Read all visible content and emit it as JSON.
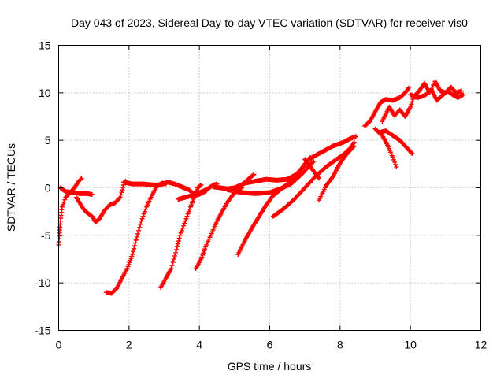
{
  "chart_data": {
    "type": "scatter",
    "title": "Day 043 of 2023, Sidereal Day-to-day VTEC variation (SDTVAR) for receiver vis0",
    "xlabel": "GPS time / hours",
    "ylabel": "SDTVAR / TECUs",
    "xlim": [
      0,
      12
    ],
    "ylim": [
      -15,
      15
    ],
    "xticks": [
      0,
      2,
      4,
      6,
      8,
      10,
      12
    ],
    "yticks": [
      -15,
      -10,
      -5,
      0,
      5,
      10,
      15
    ],
    "grid": true,
    "marker": "+",
    "color": "#ff0000",
    "series": [
      {
        "name": "track-1",
        "points": [
          [
            0.0,
            -6.0
          ],
          [
            0.05,
            -3.5
          ],
          [
            0.1,
            -2.0
          ],
          [
            0.2,
            -1.0
          ],
          [
            0.3,
            -0.6
          ],
          [
            0.45,
            0.0
          ],
          [
            0.55,
            0.6
          ],
          [
            0.65,
            1.0
          ]
        ]
      },
      {
        "name": "track-2",
        "points": [
          [
            0.05,
            0.0
          ],
          [
            0.2,
            -0.4
          ],
          [
            0.4,
            -0.5
          ],
          [
            0.6,
            -0.6
          ],
          [
            0.8,
            -0.6
          ],
          [
            0.95,
            -0.7
          ]
        ]
      },
      {
        "name": "track-3",
        "points": [
          [
            0.5,
            -1.0
          ],
          [
            0.7,
            -2.2
          ],
          [
            0.8,
            -2.6
          ],
          [
            0.95,
            -3.0
          ],
          [
            1.05,
            -3.6
          ],
          [
            1.15,
            -3.3
          ],
          [
            1.3,
            -2.4
          ],
          [
            1.45,
            -1.8
          ],
          [
            1.6,
            -1.6
          ],
          [
            1.75,
            -1.0
          ],
          [
            1.85,
            0.3
          ],
          [
            1.9,
            0.7
          ]
        ]
      },
      {
        "name": "track-4",
        "points": [
          [
            1.85,
            0.6
          ],
          [
            2.1,
            0.4
          ],
          [
            2.4,
            0.4
          ],
          [
            2.7,
            0.3
          ],
          [
            2.85,
            0.3
          ]
        ]
      },
      {
        "name": "track-5",
        "points": [
          [
            1.35,
            -11.0
          ],
          [
            1.5,
            -11.1
          ],
          [
            1.65,
            -10.6
          ],
          [
            1.8,
            -9.5
          ],
          [
            1.95,
            -8.5
          ],
          [
            2.1,
            -7.0
          ],
          [
            2.2,
            -5.5
          ],
          [
            2.35,
            -3.5
          ],
          [
            2.5,
            -2.0
          ],
          [
            2.65,
            -0.8
          ],
          [
            2.8,
            0.2
          ],
          [
            2.95,
            0.5
          ],
          [
            3.05,
            0.4
          ]
        ]
      },
      {
        "name": "track-6",
        "points": [
          [
            2.9,
            0.3
          ],
          [
            3.1,
            0.6
          ],
          [
            3.3,
            0.4
          ],
          [
            3.5,
            0.1
          ],
          [
            3.7,
            -0.2
          ],
          [
            3.9,
            -0.8
          ],
          [
            4.05,
            -0.6
          ],
          [
            4.2,
            -0.3
          ]
        ]
      },
      {
        "name": "track-7",
        "points": [
          [
            2.9,
            -10.5
          ],
          [
            3.05,
            -9.5
          ],
          [
            3.2,
            -8.5
          ],
          [
            3.35,
            -6.5
          ],
          [
            3.45,
            -5.0
          ],
          [
            3.6,
            -3.5
          ],
          [
            3.75,
            -2.0
          ],
          [
            3.85,
            -1.0
          ],
          [
            3.95,
            0.0
          ],
          [
            4.05,
            0.3
          ]
        ]
      },
      {
        "name": "track-8",
        "points": [
          [
            3.4,
            -1.2
          ],
          [
            3.6,
            -1.0
          ],
          [
            3.8,
            -0.8
          ],
          [
            4.0,
            -0.5
          ],
          [
            4.2,
            -0.2
          ],
          [
            4.4,
            0.3
          ],
          [
            4.5,
            0.4
          ]
        ]
      },
      {
        "name": "track-9",
        "points": [
          [
            3.9,
            -8.5
          ],
          [
            4.05,
            -7.5
          ],
          [
            4.2,
            -6.0
          ],
          [
            4.35,
            -4.8
          ],
          [
            4.5,
            -3.5
          ],
          [
            4.65,
            -2.5
          ],
          [
            4.8,
            -1.5
          ],
          [
            5.0,
            -0.5
          ],
          [
            5.2,
            0.0
          ]
        ]
      },
      {
        "name": "track-10",
        "points": [
          [
            4.4,
            0.1
          ],
          [
            4.6,
            0.0
          ],
          [
            4.8,
            -0.1
          ],
          [
            5.0,
            0.0
          ],
          [
            5.15,
            0.1
          ],
          [
            5.3,
            0.6
          ],
          [
            5.45,
            1.1
          ],
          [
            5.55,
            1.4
          ]
        ]
      },
      {
        "name": "track-11",
        "points": [
          [
            4.8,
            -0.2
          ],
          [
            5.2,
            -0.5
          ],
          [
            5.6,
            -0.6
          ],
          [
            6.0,
            -0.5
          ],
          [
            6.3,
            -0.1
          ],
          [
            6.6,
            0.4
          ],
          [
            6.9,
            1.4
          ],
          [
            7.1,
            2.2
          ],
          [
            7.25,
            2.8
          ]
        ]
      },
      {
        "name": "track-12",
        "points": [
          [
            5.1,
            -7.0
          ],
          [
            5.3,
            -5.5
          ],
          [
            5.5,
            -4.2
          ],
          [
            5.7,
            -3.0
          ],
          [
            5.9,
            -1.8
          ],
          [
            6.1,
            -0.8
          ],
          [
            6.3,
            -0.2
          ],
          [
            6.5,
            0.4
          ],
          [
            6.7,
            0.8
          ]
        ]
      },
      {
        "name": "track-13",
        "points": [
          [
            5.0,
            0.0
          ],
          [
            5.3,
            0.5
          ],
          [
            5.6,
            0.7
          ],
          [
            5.9,
            0.9
          ],
          [
            6.2,
            0.8
          ],
          [
            6.5,
            0.9
          ],
          [
            6.8,
            1.5
          ],
          [
            7.0,
            2.5
          ],
          [
            7.15,
            3.2
          ]
        ]
      },
      {
        "name": "track-14",
        "points": [
          [
            6.1,
            -3.0
          ],
          [
            6.4,
            -2.2
          ],
          [
            6.7,
            -1.2
          ],
          [
            7.0,
            0.0
          ],
          [
            7.3,
            1.2
          ],
          [
            7.6,
            2.2
          ],
          [
            7.9,
            3.0
          ],
          [
            8.1,
            3.5
          ],
          [
            8.3,
            4.2
          ],
          [
            8.4,
            4.8
          ]
        ]
      },
      {
        "name": "track-15",
        "points": [
          [
            6.6,
            0.8
          ],
          [
            6.9,
            2.0
          ],
          [
            7.2,
            3.2
          ],
          [
            7.5,
            3.8
          ],
          [
            7.8,
            4.4
          ],
          [
            8.1,
            4.8
          ],
          [
            8.3,
            5.2
          ],
          [
            8.45,
            5.4
          ]
        ]
      },
      {
        "name": "track-16",
        "points": [
          [
            7.4,
            -1.3
          ],
          [
            7.6,
            0.2
          ],
          [
            7.8,
            1.2
          ],
          [
            8.0,
            2.6
          ],
          [
            8.2,
            3.6
          ],
          [
            8.4,
            4.4
          ]
        ]
      },
      {
        "name": "track-17",
        "points": [
          [
            7.0,
            3.0
          ],
          [
            7.2,
            2.0
          ],
          [
            7.4,
            1.0
          ]
        ]
      },
      {
        "name": "track-18",
        "points": [
          [
            8.7,
            6.5
          ],
          [
            8.85,
            7.0
          ],
          [
            9.0,
            8.0
          ],
          [
            9.15,
            9.0
          ],
          [
            9.3,
            9.3
          ],
          [
            9.5,
            9.2
          ],
          [
            9.7,
            9.5
          ],
          [
            9.85,
            10.0
          ],
          [
            9.95,
            10.5
          ]
        ]
      },
      {
        "name": "track-19",
        "points": [
          [
            9.0,
            6.2
          ],
          [
            9.2,
            5.5
          ],
          [
            9.35,
            4.5
          ],
          [
            9.5,
            3.2
          ],
          [
            9.6,
            2.2
          ]
        ]
      },
      {
        "name": "track-20",
        "points": [
          [
            9.1,
            5.8
          ],
          [
            9.3,
            6.0
          ],
          [
            9.5,
            5.5
          ],
          [
            9.7,
            5.0
          ],
          [
            9.9,
            4.2
          ],
          [
            10.05,
            3.6
          ]
        ]
      },
      {
        "name": "track-21",
        "points": [
          [
            9.2,
            7.0
          ],
          [
            9.4,
            8.5
          ],
          [
            9.55,
            7.6
          ],
          [
            9.7,
            8.2
          ],
          [
            9.85,
            7.5
          ],
          [
            10.0,
            8.5
          ],
          [
            10.1,
            9.6
          ],
          [
            10.25,
            10.2
          ],
          [
            10.4,
            11.0
          ],
          [
            10.55,
            10.0
          ],
          [
            10.7,
            11.2
          ],
          [
            10.85,
            10.2
          ],
          [
            11.0,
            10.0
          ],
          [
            11.15,
            10.6
          ],
          [
            11.3,
            10.0
          ],
          [
            11.45,
            10.2
          ]
        ]
      },
      {
        "name": "track-22",
        "points": [
          [
            10.0,
            9.8
          ],
          [
            10.2,
            9.5
          ],
          [
            10.4,
            9.7
          ],
          [
            10.6,
            10.3
          ],
          [
            10.75,
            9.2
          ],
          [
            10.9,
            9.7
          ],
          [
            11.05,
            10.2
          ],
          [
            11.2,
            9.8
          ],
          [
            11.35,
            9.5
          ],
          [
            11.5,
            9.8
          ]
        ]
      }
    ]
  }
}
